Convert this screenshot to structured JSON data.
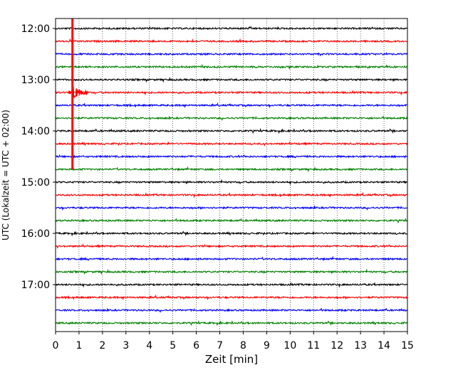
{
  "chart_data": {
    "type": "line",
    "title": "",
    "xlabel": "Zeit  [min]",
    "ylabel": "UTC (Lokalzeit = UTC + 02:00)",
    "xlim": [
      0,
      15
    ],
    "x_ticks": [
      0,
      1,
      2,
      3,
      4,
      5,
      6,
      7,
      8,
      9,
      10,
      11,
      12,
      13,
      14,
      15
    ],
    "x_tick_labels": [
      "0",
      "1",
      "2",
      "3",
      "4",
      "5",
      "6",
      "7",
      "8",
      "9",
      "10",
      "11",
      "12",
      "13",
      "14",
      "15"
    ],
    "y_tick_labels": [
      "12:00",
      "13:00",
      "14:00",
      "15:00",
      "16:00",
      "17:00"
    ],
    "y_tick_hours": [
      12,
      13,
      14,
      15,
      16,
      17
    ],
    "trace_start_hour": 12,
    "trace_interval_min": 15,
    "trace_count": 24,
    "x_grid": "dotted",
    "colors": [
      "#000000",
      "#ff0000",
      "#0000ff",
      "#008000"
    ],
    "events": [
      {
        "time_min": 0.72,
        "start_hour": 12.0,
        "end_hour": 14.75,
        "description": "Seismic event"
      }
    ]
  }
}
